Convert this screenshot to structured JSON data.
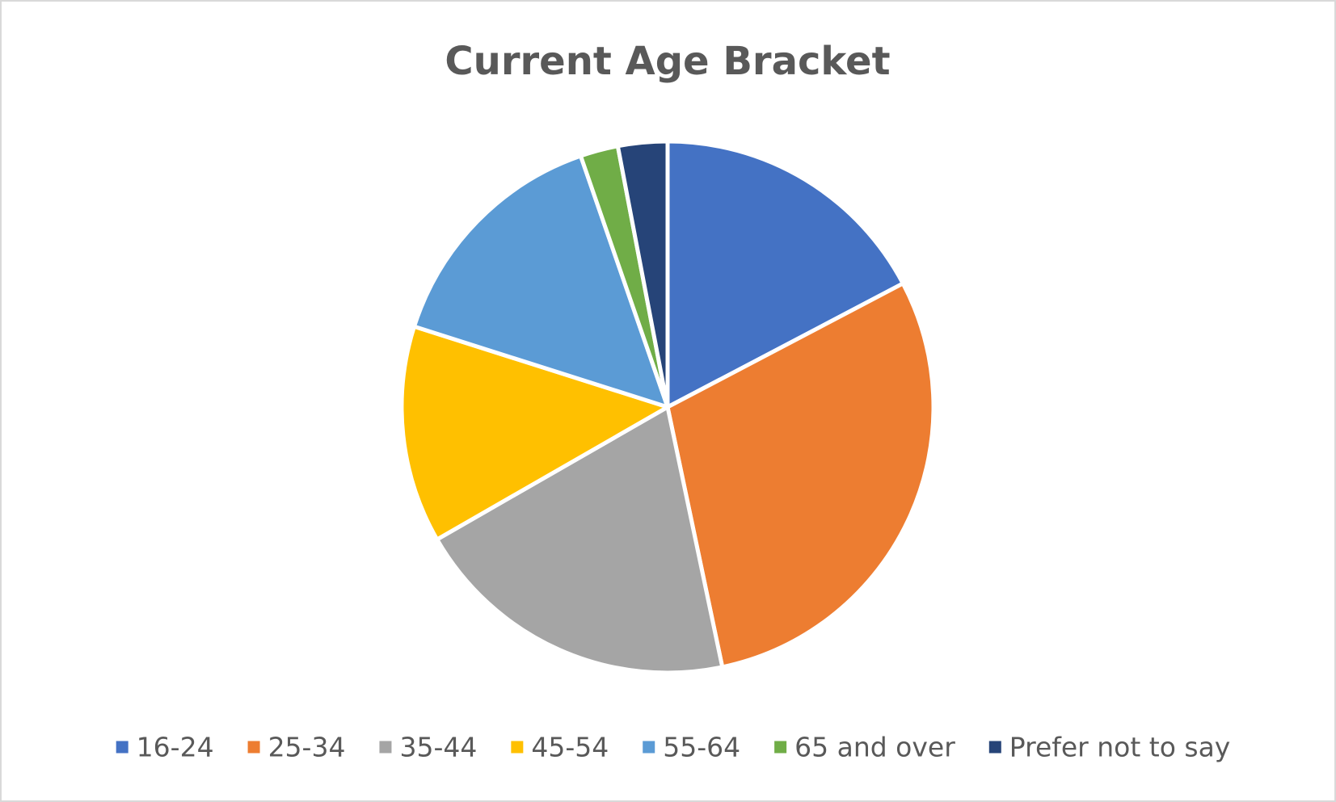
{
  "chart_data": {
    "type": "pie",
    "title": "Current Age Bracket",
    "categories": [
      "16-24",
      "25-34",
      "35-44",
      "45-54",
      "55-64",
      "65 and over",
      "Prefer not to say"
    ],
    "values": [
      17.3,
      29.4,
      20.0,
      13.2,
      14.8,
      2.3,
      3.0
    ],
    "colors": [
      "#4472c4",
      "#ed7d31",
      "#a5a5a5",
      "#ffc000",
      "#5b9bd5",
      "#70ad47",
      "#264478"
    ],
    "legend": "bottom"
  }
}
